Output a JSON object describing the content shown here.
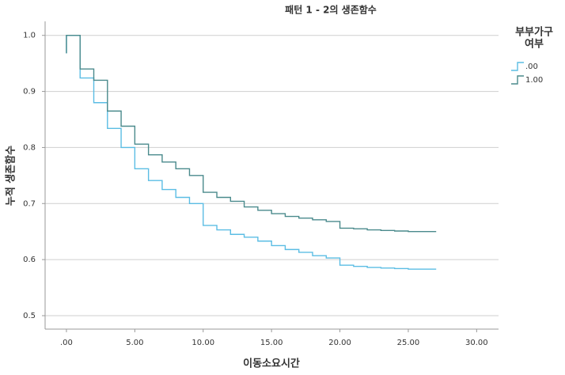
{
  "chart_data": {
    "type": "step",
    "title": "패턴 1 - 2의 생존함수",
    "xlabel": "이동소요시간",
    "ylabel": "누적 생존함수",
    "legend_title": [
      "부부가구",
      "여부"
    ],
    "legend": "right",
    "grid": true,
    "xlim": [
      -1.56,
      31.6
    ],
    "ylim": [
      0.476,
      1.025
    ],
    "xticks": [
      {
        "value": 0,
        "label": ".00"
      },
      {
        "value": 5,
        "label": "5.00"
      },
      {
        "value": 10,
        "label": "10.00"
      },
      {
        "value": 15,
        "label": "15.00"
      },
      {
        "value": 20,
        "label": "20.00"
      },
      {
        "value": 25,
        "label": "25.00"
      },
      {
        "value": 30,
        "label": "30.00"
      }
    ],
    "yticks": [
      0.5,
      0.6,
      0.7,
      0.8,
      0.9,
      {
        "value": 1,
        "label": "1.0"
      }
    ],
    "series": [
      {
        "name": ".00",
        "color": "#5bbde4",
        "x": [
          0,
          0,
          1,
          2,
          3,
          4,
          5,
          6,
          7,
          8,
          9,
          10,
          11,
          12,
          13,
          14,
          15,
          16,
          17,
          18,
          19,
          20,
          21,
          22,
          23,
          24,
          25,
          27
        ],
        "values": [
          0.968,
          1.0,
          0.924,
          0.88,
          0.834,
          0.8,
          0.762,
          0.741,
          0.725,
          0.711,
          0.7,
          0.661,
          0.653,
          0.645,
          0.64,
          0.633,
          0.625,
          0.618,
          0.613,
          0.607,
          0.603,
          0.59,
          0.588,
          0.586,
          0.585,
          0.584,
          0.583,
          0.582
        ]
      },
      {
        "name": "1.00",
        "color": "#4a8a8c",
        "x": [
          0,
          0,
          1,
          2,
          3,
          4,
          5,
          6,
          7,
          8,
          9,
          10,
          11,
          12,
          13,
          14,
          15,
          16,
          17,
          18,
          19,
          20,
          21,
          22,
          23,
          24,
          25,
          27
        ],
        "values": [
          0.968,
          1.0,
          0.94,
          0.92,
          0.865,
          0.838,
          0.806,
          0.787,
          0.774,
          0.762,
          0.75,
          0.72,
          0.711,
          0.704,
          0.694,
          0.688,
          0.682,
          0.677,
          0.674,
          0.671,
          0.668,
          0.656,
          0.655,
          0.653,
          0.652,
          0.651,
          0.65,
          0.649
        ]
      }
    ]
  }
}
